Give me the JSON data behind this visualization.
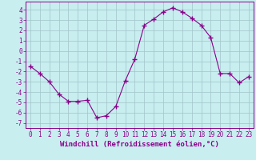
{
  "x": [
    0,
    1,
    2,
    3,
    4,
    5,
    6,
    7,
    8,
    9,
    10,
    11,
    12,
    13,
    14,
    15,
    16,
    17,
    18,
    19,
    20,
    21,
    22,
    23
  ],
  "y": [
    -1.5,
    -2.2,
    -3.0,
    -4.2,
    -4.9,
    -4.9,
    -4.8,
    -6.5,
    -6.3,
    -5.4,
    -2.9,
    -0.8,
    2.5,
    3.1,
    3.8,
    4.2,
    3.8,
    3.2,
    2.5,
    1.3,
    -2.2,
    -2.2,
    -3.1,
    -2.5
  ],
  "line_color": "#8B008B",
  "marker": "+",
  "marker_size": 4,
  "marker_lw": 1.0,
  "bg_color": "#c8eef0",
  "grid_color": "#a0c4c8",
  "xlabel": "Windchill (Refroidissement éolien,°C)",
  "xlabel_color": "#8B008B",
  "xlim": [
    -0.5,
    23.5
  ],
  "ylim": [
    -7.5,
    4.8
  ],
  "xticks": [
    0,
    1,
    2,
    3,
    4,
    5,
    6,
    7,
    8,
    9,
    10,
    11,
    12,
    13,
    14,
    15,
    16,
    17,
    18,
    19,
    20,
    21,
    22,
    23
  ],
  "yticks": [
    -7,
    -6,
    -5,
    -4,
    -3,
    -2,
    -1,
    0,
    1,
    2,
    3,
    4
  ],
  "tick_fontsize": 5.5,
  "xlabel_fontsize": 6.5,
  "spine_color": "#8B008B",
  "line_width": 0.8
}
